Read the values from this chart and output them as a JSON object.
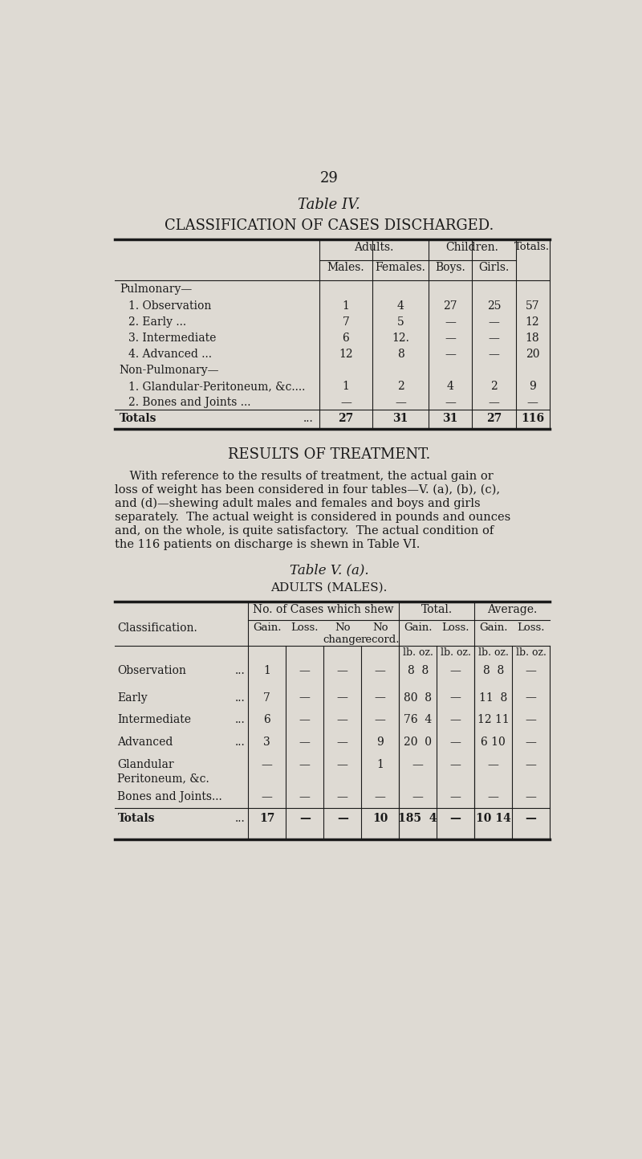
{
  "page_number": "29",
  "bg_color": "#dedad3",
  "text_color": "#1a1a1a",
  "table4_title": "Table IV.",
  "table4_subtitle": "CLASSIFICATION OF CASES DISCHARGED.",
  "table4_rows": [
    {
      "label": "Pulmonary—",
      "indent": 0,
      "is_section": true,
      "vals": [
        "",
        "",
        "",
        "",
        ""
      ]
    },
    {
      "label": "1. Observation",
      "indent": 1,
      "trail": "   ...   ...",
      "vals": [
        "1",
        "4",
        "27",
        "25",
        "57"
      ]
    },
    {
      "label": "2. Early ...",
      "indent": 1,
      "trail": "   ...   ...   ...",
      "vals": [
        "7",
        "5",
        "—",
        "—",
        "12"
      ]
    },
    {
      "label": "3. Intermediate",
      "indent": 1,
      "trail": "   ...   ...",
      "vals": [
        "6",
        "12.",
        "—",
        "—",
        "18"
      ]
    },
    {
      "label": "4. Advanced ...",
      "indent": 1,
      "trail": "   ‘..   ...",
      "vals": [
        "12",
        "8",
        "—",
        "—",
        "20"
      ]
    },
    {
      "label": "Non-Pulmonary—",
      "indent": 0,
      "is_section": true,
      "vals": [
        "",
        "",
        "",
        "",
        ""
      ]
    },
    {
      "label": "1. Glandular-Peritoneum, &c....",
      "indent": 1,
      "trail": "",
      "vals": [
        "1",
        "2",
        "4",
        "2",
        "9"
      ]
    },
    {
      "label": "2. Bones and Joints ...",
      "indent": 1,
      "trail": "   ...",
      "vals": [
        "—",
        "—",
        "—",
        "—",
        "—"
      ]
    },
    {
      "label": "Totals",
      "indent": 0,
      "trail": "   ...   ...",
      "vals": [
        "27",
        "31",
        "31",
        "27",
        "116"
      ],
      "is_total": true
    }
  ],
  "results_heading": "RESULTS OF TREATMENT.",
  "results_body_lines": [
    "    With reference to the results of treatment, the actual gain or",
    "loss of weight has been considered in four tables—V. (a), (b), (c),",
    "and (d)—shewing adult males and females and boys and girls",
    "separately.  The actual weight is considered in pounds and ounces",
    "and, on the whole, is quite satisfactory.  The actual condition of",
    "the 116 patients on discharge is shewn in Table VI."
  ],
  "table5_title": "Table V. (a).",
  "table5_subtitle": "ADULTS (MALES).",
  "table5_rows": [
    {
      "label": "Observation",
      "trail": "...",
      "vals": [
        "1",
        "—",
        "—",
        "—",
        "8  8",
        "—",
        "8  8",
        "—"
      ]
    },
    {
      "label": "Early",
      "trail": "   ...   ...",
      "vals": [
        "7",
        "—",
        "—",
        "—",
        "80  8",
        "—",
        "11  8",
        "—"
      ]
    },
    {
      "label": "Intermediate",
      "trail": "...",
      "vals": [
        "6",
        "—",
        "—",
        "—",
        "76  4",
        "—",
        "12 11",
        "—"
      ]
    },
    {
      "label": "Advanced",
      "trail": "...",
      "vals": [
        "3",
        "—",
        "—",
        "9",
        "20  0",
        "—",
        "6 10",
        "—"
      ]
    },
    {
      "label": "Glandular\nPeritoneum, &c.",
      "trail": "",
      "vals": [
        "—",
        "—",
        "—",
        "1",
        "—",
        "—",
        "—",
        "—"
      ]
    },
    {
      "label": "Bones and Joints...",
      "trail": "",
      "vals": [
        "—",
        "—",
        "—",
        "—",
        "—",
        "—",
        "—",
        "—"
      ]
    },
    {
      "label": "Totals",
      "trail": "   ...",
      "vals": [
        "17",
        "—",
        "—",
        "10",
        "185  4",
        "—",
        "10 14",
        "—"
      ],
      "is_total": true
    }
  ]
}
